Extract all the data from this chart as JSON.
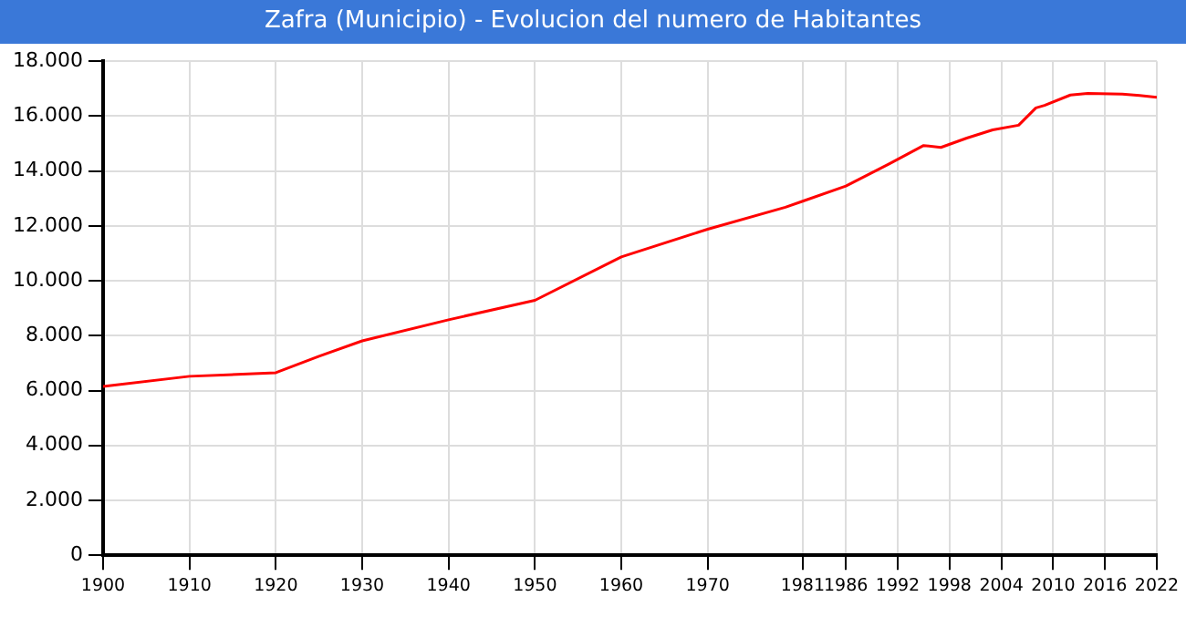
{
  "chart_data": {
    "type": "line",
    "title": "Zafra (Municipio) - Evolucion del numero de Habitantes",
    "x": [
      1900,
      1910,
      1920,
      1925,
      1930,
      1940,
      1950,
      1960,
      1970,
      1979,
      1981,
      1986,
      1991,
      1995,
      1997,
      2000,
      2003,
      2006,
      2008,
      2009,
      2012,
      2014,
      2018,
      2020,
      2022
    ],
    "series": [
      {
        "color": "#ff0000",
        "values": [
          6150,
          6520,
          6650,
          7250,
          7810,
          8580,
          9290,
          10870,
          11880,
          12680,
          12900,
          13450,
          14260,
          14930,
          14860,
          15200,
          15500,
          15670,
          16300,
          16390,
          16770,
          16830,
          16800,
          16750,
          16690
        ]
      }
    ],
    "xlim": [
      1900,
      2022
    ],
    "xticks": [
      1900,
      1910,
      1920,
      1930,
      1940,
      1950,
      1960,
      1970,
      1981,
      1986,
      1992,
      1998,
      2004,
      2010,
      2016,
      2022
    ],
    "ylim": [
      0,
      18000
    ],
    "yticks": [
      0,
      {
        "value": 2000,
        "label": "2.000"
      },
      {
        "value": 4000,
        "label": "4.000"
      },
      {
        "value": 6000,
        "label": "6.000"
      },
      {
        "value": 8000,
        "label": "8.000"
      },
      {
        "value": 10000,
        "label": "10.000"
      },
      {
        "value": 12000,
        "label": "12.000"
      },
      {
        "value": 14000,
        "label": "14.000"
      },
      {
        "value": 16000,
        "label": "16.000"
      },
      {
        "value": 18000,
        "label": "18.000"
      }
    ],
    "grid": true,
    "legend": false,
    "marker": "none",
    "line_style": "solid"
  }
}
